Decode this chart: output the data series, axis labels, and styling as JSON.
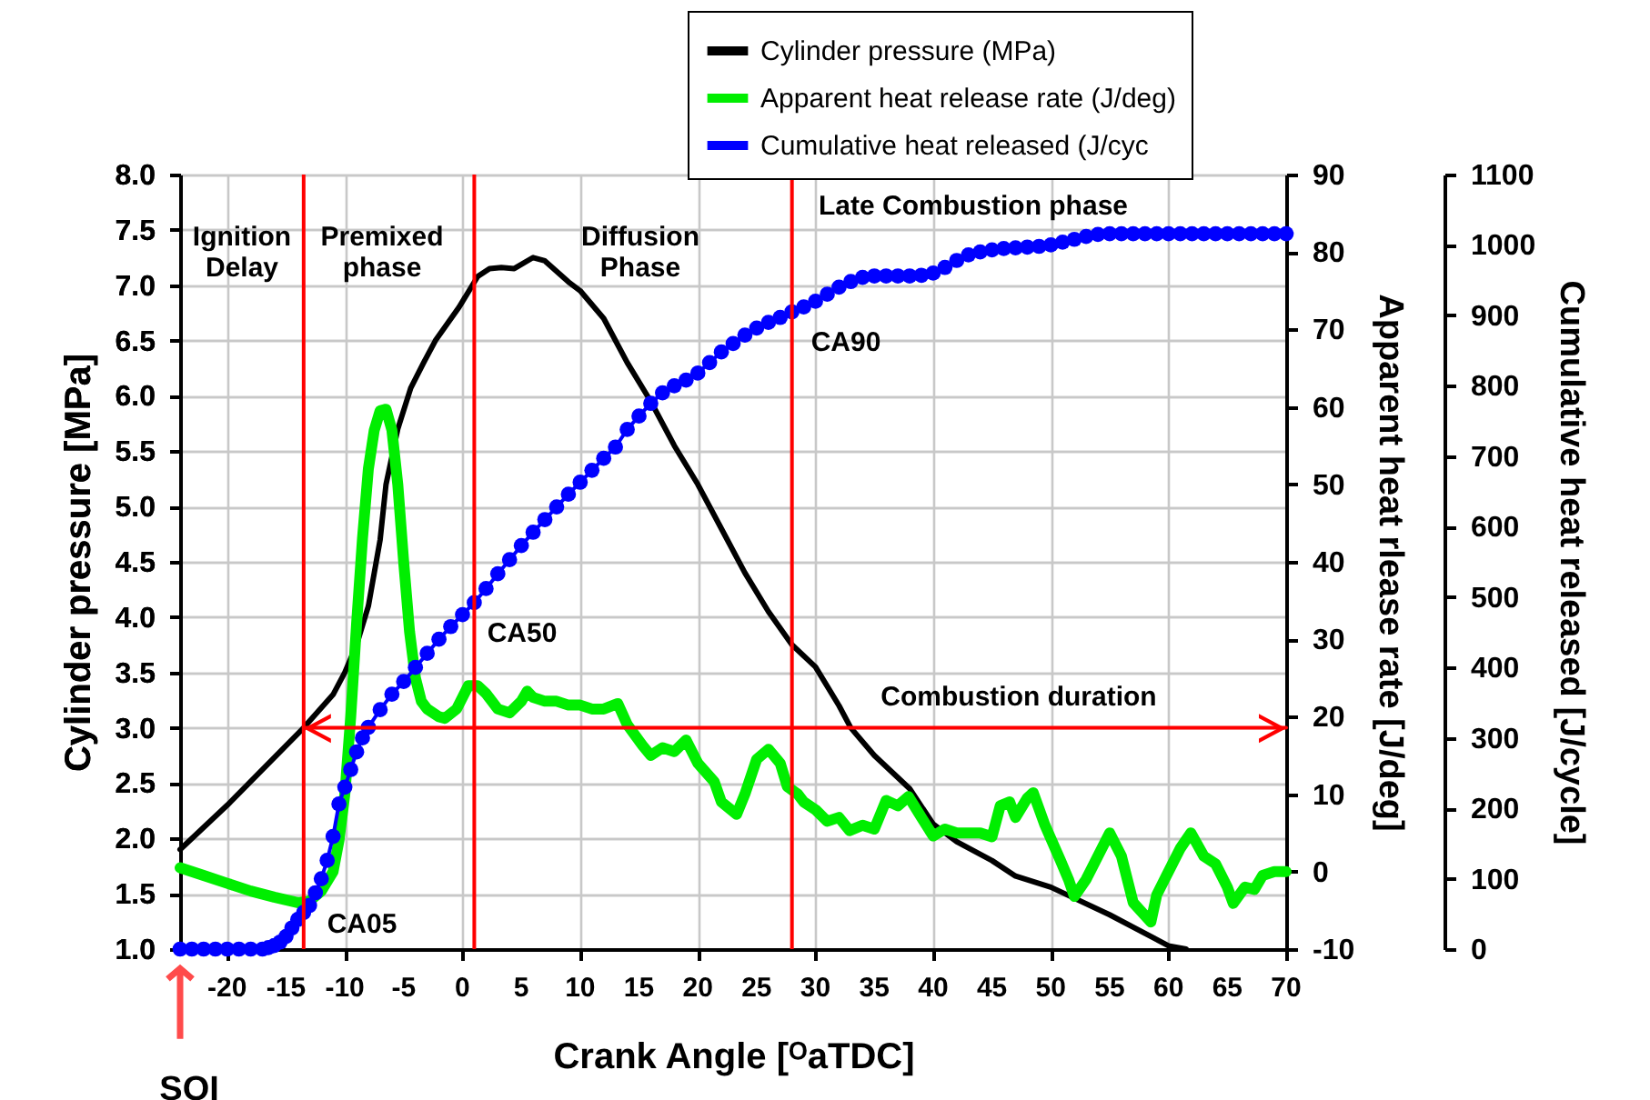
{
  "chart_data": {
    "type": "line",
    "xlabel": "Crank Angle [ᴼaTDC]",
    "ylabel": "Cylinder pressure [MPa]",
    "y2label": "Apparent heat rlease rate [J/deg]",
    "y3label": "Cumulative heat released [J/cycle]",
    "xlim": [
      -24,
      70
    ],
    "xticks": [
      -20,
      -15,
      -10,
      -5,
      0,
      5,
      10,
      15,
      20,
      25,
      30,
      35,
      40,
      45,
      50,
      55,
      60,
      65,
      70
    ],
    "ylim": [
      1,
      8
    ],
    "yticks": [
      {
        "value": 1,
        "label": "1.0"
      },
      1.5,
      {
        "value": 2,
        "label": "2.0"
      },
      2.5,
      {
        "value": 3,
        "label": "3.0"
      },
      3.5,
      {
        "value": 4,
        "label": "4.0"
      },
      4.5,
      {
        "value": 5,
        "label": "5.0"
      },
      5.5,
      {
        "value": 6,
        "label": "6.0"
      },
      6.5,
      {
        "value": 7,
        "label": "7.0"
      },
      7.5,
      {
        "value": 8,
        "label": "8.0"
      }
    ],
    "y2lim": [
      -10,
      90
    ],
    "y2ticks": [
      -10,
      0,
      10,
      20,
      30,
      40,
      50,
      60,
      70,
      80,
      90
    ],
    "y3lim": [
      0,
      1100
    ],
    "y3ticks": [
      0,
      100,
      200,
      300,
      400,
      500,
      600,
      700,
      800,
      900,
      1000,
      1100
    ],
    "grid": true,
    "legend": "top",
    "series": [
      {
        "name": "Cylinder pressure (MPa)",
        "color": "#000000",
        "x": [
          -24,
          -20,
          -16,
          -13.5,
          -11,
          -10,
          -9,
          -8,
          -7,
          -6.5,
          -5.5,
          -4.4,
          -3.3,
          -2.3,
          -1.3,
          -0.3,
          1.3,
          2.3,
          3.3,
          4.4,
          6,
          7,
          9,
          10,
          12,
          14,
          16,
          18,
          20,
          22,
          24,
          26,
          28,
          30,
          32,
          33,
          35,
          38,
          40,
          42,
          45,
          47,
          50,
          55,
          60,
          61.5
        ],
        "values": [
          1.9,
          2.3,
          2.73,
          3.0,
          3.3,
          3.5,
          3.75,
          4.1,
          4.7,
          5.2,
          5.7,
          6.07,
          6.3,
          6.5,
          6.65,
          6.8,
          7.08,
          7.15,
          7.16,
          7.15,
          7.25,
          7.22,
          7.03,
          6.95,
          6.7,
          6.3,
          5.95,
          5.55,
          5.2,
          4.8,
          4.4,
          4.05,
          3.75,
          3.55,
          3.2,
          3.0,
          2.75,
          2.45,
          2.13,
          1.97,
          1.8,
          1.66,
          1.56,
          1.31,
          1.03,
          1.0
        ]
      },
      {
        "name": "Apparent heat release rate (J/deg)",
        "color": "#00ee00",
        "axis": "y2",
        "x": [
          -24,
          -22,
          -20,
          -18,
          -16,
          -14,
          -13,
          -12,
          -11,
          -10.5,
          -10,
          -9.5,
          -9,
          -8.5,
          -8,
          -7.5,
          -7,
          -6.5,
          -6,
          -5.5,
          -5,
          -4.5,
          -4,
          -3.5,
          -3,
          -2,
          -1.5,
          -0.5,
          0.5,
          1.3,
          2,
          3,
          4,
          5,
          5.5,
          6,
          7,
          8,
          9,
          10,
          11,
          12,
          13.2,
          14,
          15.3,
          16,
          17,
          18,
          19,
          20,
          21.4,
          22,
          23.3,
          24,
          25,
          26,
          27,
          27.6,
          28.5,
          29,
          30,
          31,
          32,
          32.9,
          34,
          35,
          36,
          37,
          37.9,
          39,
          40,
          41,
          42,
          43,
          44,
          45,
          45.7,
          46.5,
          47,
          48,
          48.5,
          49.5,
          50.8,
          51.5,
          52,
          53,
          54,
          55,
          56,
          57,
          58.5,
          59,
          60,
          61,
          61.9,
          63,
          64,
          65,
          65.5,
          66.5,
          67.3,
          68,
          69,
          70
        ],
        "values": [
          0.5,
          -0.5,
          -1.5,
          -2.5,
          -3.3,
          -4,
          -3.8,
          -2.5,
          0,
          4,
          10,
          20,
          32,
          43,
          52,
          57,
          59.5,
          59.7,
          57,
          50,
          40,
          31,
          25,
          22,
          21,
          20,
          19.8,
          21,
          24,
          24,
          23,
          21,
          20.5,
          22,
          23.3,
          22.5,
          22,
          22,
          21.5,
          21.5,
          21,
          21,
          21.7,
          19,
          16.3,
          15,
          16,
          15.5,
          17,
          14,
          11.6,
          9,
          7.4,
          10,
          14.5,
          15.8,
          14,
          11,
          10,
          9,
          8,
          6.5,
          7,
          5.3,
          6,
          5.5,
          9.2,
          8.5,
          9.7,
          7,
          4.6,
          5.5,
          5,
          5,
          5,
          4.5,
          8.5,
          9,
          7,
          9.5,
          10.2,
          6,
          1.5,
          -1,
          -3.2,
          -1,
          2,
          5,
          2,
          -4,
          -6.5,
          -3,
          0,
          3,
          5,
          2,
          1,
          -2,
          -4.1,
          -2,
          -2.3,
          -0.5,
          0,
          0
        ]
      },
      {
        "name": "Cumulative heat released (J/cyc",
        "color": "#0000ff",
        "axis": "y3",
        "marker": "circle",
        "x": [
          -24,
          -23,
          -22,
          -21,
          -20,
          -19,
          -18,
          -17,
          -16.5,
          -16,
          -15.5,
          -15,
          -14.5,
          -14,
          -13.5,
          -13,
          -12.5,
          -12,
          -11.5,
          -11,
          -10.5,
          -10,
          -9.5,
          -9,
          -8.5,
          -8,
          -7,
          -6,
          -5,
          -4,
          -3,
          -2,
          -1,
          0,
          1,
          2,
          3,
          4,
          5,
          6,
          7,
          8,
          9,
          10,
          11,
          12,
          13,
          14,
          15,
          16,
          17,
          18,
          19,
          20,
          21,
          22,
          23,
          24,
          25,
          26,
          27,
          28,
          29,
          30,
          31,
          32,
          33,
          34,
          35,
          36,
          37,
          38,
          39,
          40,
          41,
          42,
          43,
          44,
          45,
          46,
          47,
          48,
          49,
          50,
          51,
          52,
          53,
          54,
          55,
          56,
          57,
          58,
          59,
          60,
          61,
          62,
          63,
          64,
          65,
          66,
          67,
          68,
          69,
          70
        ],
        "values": [
          0,
          0,
          0,
          0,
          0,
          0,
          0,
          0,
          2,
          5,
          10,
          18,
          30,
          42,
          52,
          62,
          80,
          100,
          126,
          160,
          206,
          230,
          255,
          280,
          300,
          315,
          340,
          362,
          380,
          400,
          420,
          440,
          458,
          475,
          492,
          512,
          533,
          553,
          573,
          592,
          610,
          628,
          646,
          663,
          680,
          697,
          713,
          738,
          757,
          775,
          790,
          800,
          808,
          818,
          833,
          848,
          860,
          872,
          882,
          890,
          897,
          905,
          912,
          920,
          930,
          940,
          948,
          954,
          956,
          956,
          956,
          956,
          957,
          960,
          968,
          978,
          986,
          990,
          993,
          995,
          996,
          997,
          998,
          1000,
          1004,
          1008,
          1012,
          1015,
          1016,
          1016,
          1016,
          1016,
          1016,
          1016,
          1016,
          1016,
          1016,
          1016,
          1016,
          1016,
          1016,
          1016,
          1016,
          1016
        ]
      },
      {
        "type": "line",
        "color": "#ff0000",
        "x": [
          -13.5,
          70
        ],
        "values": [
          3.0,
          3.0
        ]
      }
    ],
    "ref_lines": [
      {
        "axis": "x",
        "value": -13.5,
        "color": "#ff0000"
      },
      {
        "axis": "x",
        "value": 1,
        "color": "#ff0000"
      },
      {
        "axis": "x",
        "value": 28,
        "color": "#ff0000"
      }
    ],
    "annotations": [
      "Ignition\nDelay",
      "Premixed\nphase",
      "Diffusion\nPhase",
      "Late Combustion phase",
      "CA05",
      "CA50",
      "CA90",
      "Combustion duration",
      "SOI"
    ]
  }
}
